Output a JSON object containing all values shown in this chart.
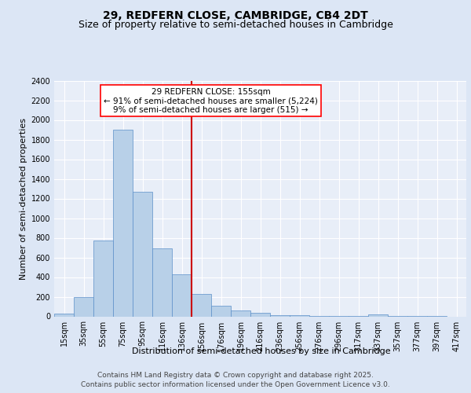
{
  "title": "29, REDFERN CLOSE, CAMBRIDGE, CB4 2DT",
  "subtitle": "Size of property relative to semi-detached houses in Cambridge",
  "xlabel": "Distribution of semi-detached houses by size in Cambridge",
  "ylabel": "Number of semi-detached properties",
  "categories": [
    "15sqm",
    "35sqm",
    "55sqm",
    "75sqm",
    "95sqm",
    "116sqm",
    "136sqm",
    "156sqm",
    "176sqm",
    "196sqm",
    "216sqm",
    "236sqm",
    "256sqm",
    "276sqm",
    "296sqm",
    "317sqm",
    "337sqm",
    "357sqm",
    "377sqm",
    "397sqm",
    "417sqm"
  ],
  "values": [
    25,
    200,
    770,
    1900,
    1270,
    690,
    430,
    230,
    105,
    60,
    40,
    15,
    10,
    5,
    5,
    3,
    20,
    5,
    3,
    2,
    0
  ],
  "bar_color": "#b8d0e8",
  "bar_edge_color": "#5b8fc9",
  "vline_color": "#cc0000",
  "vline_index": 7,
  "annotation_text": "29 REDFERN CLOSE: 155sqm\n← 91% of semi-detached houses are smaller (5,224)\n9% of semi-detached houses are larger (515) →",
  "ylim": [
    0,
    2400
  ],
  "yticks": [
    0,
    200,
    400,
    600,
    800,
    1000,
    1200,
    1400,
    1600,
    1800,
    2000,
    2200,
    2400
  ],
  "bg_color": "#dce6f5",
  "plot_bg_color": "#e8eef8",
  "footer_line1": "Contains HM Land Registry data © Crown copyright and database right 2025.",
  "footer_line2": "Contains public sector information licensed under the Open Government Licence v3.0.",
  "title_fontsize": 10,
  "subtitle_fontsize": 9,
  "axis_label_fontsize": 8,
  "tick_fontsize": 7,
  "annotation_fontsize": 7.5,
  "footer_fontsize": 6.5
}
